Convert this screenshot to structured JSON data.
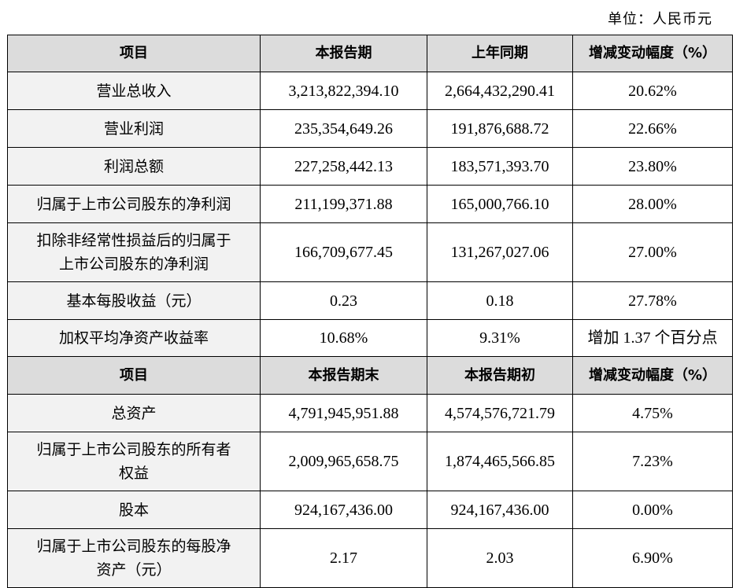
{
  "unit_label": "单位：人民币元",
  "header1": [
    "项目",
    "本报告期",
    "上年同期",
    "增减变动幅度（%）"
  ],
  "header2": [
    "项目",
    "本报告期末",
    "本报告期初",
    "增减变动幅度（%）"
  ],
  "section1": [
    {
      "label": "营业总收入",
      "current": "3,213,822,394.10",
      "previous": "2,664,432,290.41",
      "change": "20.62%"
    },
    {
      "label": "营业利润",
      "current": "235,354,649.26",
      "previous": "191,876,688.72",
      "change": "22.66%"
    },
    {
      "label": "利润总额",
      "current": "227,258,442.13",
      "previous": "183,571,393.70",
      "change": "23.80%"
    },
    {
      "label": "归属于上市公司股东的净利润",
      "current": "211,199,371.88",
      "previous": "165,000,766.10",
      "change": "28.00%"
    },
    {
      "label_line1": "扣除非经常性损益后的归属于",
      "label_line2": "上市公司股东的净利润",
      "current": "166,709,677.45",
      "previous": "131,267,027.06",
      "change": "27.00%"
    },
    {
      "label": "基本每股收益（元）",
      "current": "0.23",
      "previous": "0.18",
      "change": "27.78%"
    },
    {
      "label": "加权平均净资产收益率",
      "current": "10.68%",
      "previous": "9.31%",
      "change": "增加 1.37 个百分点"
    }
  ],
  "section2": [
    {
      "label": "总资产",
      "current": "4,791,945,951.88",
      "previous": "4,574,576,721.79",
      "change": "4.75%"
    },
    {
      "label_line1": "归属于上市公司股东的所有者",
      "label_line2": "权益",
      "current": "2,009,965,658.75",
      "previous": "1,874,465,566.85",
      "change": "7.23%"
    },
    {
      "label": "股本",
      "current": "924,167,436.00",
      "previous": "924,167,436.00",
      "change": "0.00%"
    },
    {
      "label_line1": "归属于上市公司股东的每股净",
      "label_line2": "资产（元）",
      "current": "2.17",
      "previous": "2.03",
      "change": "6.90%"
    }
  ]
}
